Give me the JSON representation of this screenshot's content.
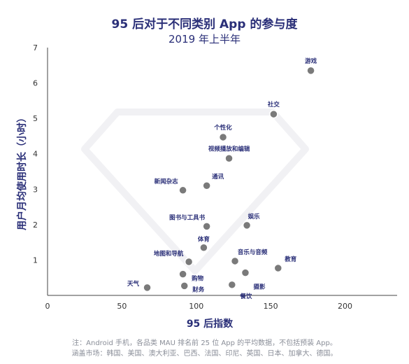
{
  "chart_data": {
    "type": "scatter",
    "title": "95 后对于不同类别 App 的参与度",
    "subtitle": "2019 年上半年",
    "xlabel": "95 后指数",
    "ylabel": "用户月均使用时长（小时）",
    "xlim": [
      0,
      235
    ],
    "ylim": [
      0,
      7
    ],
    "xticks": [
      "0",
      "50",
      "100",
      "150",
      "200"
    ],
    "yticks": [
      "1",
      "2",
      "3",
      "4",
      "5",
      "6",
      "7"
    ],
    "grid": false,
    "point_color": "#7a7a7a",
    "axis_label_color": "#2a2f78",
    "points": [
      {
        "label": "游戏",
        "x": 177,
        "y": 6.35
      },
      {
        "label": "社交",
        "x": 152,
        "y": 5.12
      },
      {
        "label": "个性化",
        "x": 118,
        "y": 4.47
      },
      {
        "label": "视频播放和编辑",
        "x": 122,
        "y": 3.87
      },
      {
        "label": "通讯",
        "x": 107,
        "y": 3.1
      },
      {
        "label": "新闻杂志",
        "x": 91,
        "y": 2.97
      },
      {
        "label": "图书与工具书",
        "x": 107,
        "y": 1.95
      },
      {
        "label": "娱乐",
        "x": 134,
        "y": 1.98
      },
      {
        "label": "体育",
        "x": 105,
        "y": 1.35
      },
      {
        "label": "地图和导航",
        "x": 95,
        "y": 0.95
      },
      {
        "label": "音乐与音频",
        "x": 126,
        "y": 0.97
      },
      {
        "label": "教育",
        "x": 155,
        "y": 0.77
      },
      {
        "label": "购物",
        "x": 91,
        "y": 0.6
      },
      {
        "label": "摄影",
        "x": 133,
        "y": 0.64
      },
      {
        "label": "天气",
        "x": 67,
        "y": 0.22
      },
      {
        "label": "财务",
        "x": 92,
        "y": 0.27
      },
      {
        "label": "餐饮",
        "x": 124,
        "y": 0.3
      }
    ]
  },
  "footnote": {
    "line1": "注：Android 手机，各品类 MAU 排名前 25 位 App 的平均数据，不包括预装 App。",
    "line2": "涵盖市场：韩国、美国、澳大利亚、巴西、法国、印尼、英国、日本、加拿大、德国。"
  }
}
